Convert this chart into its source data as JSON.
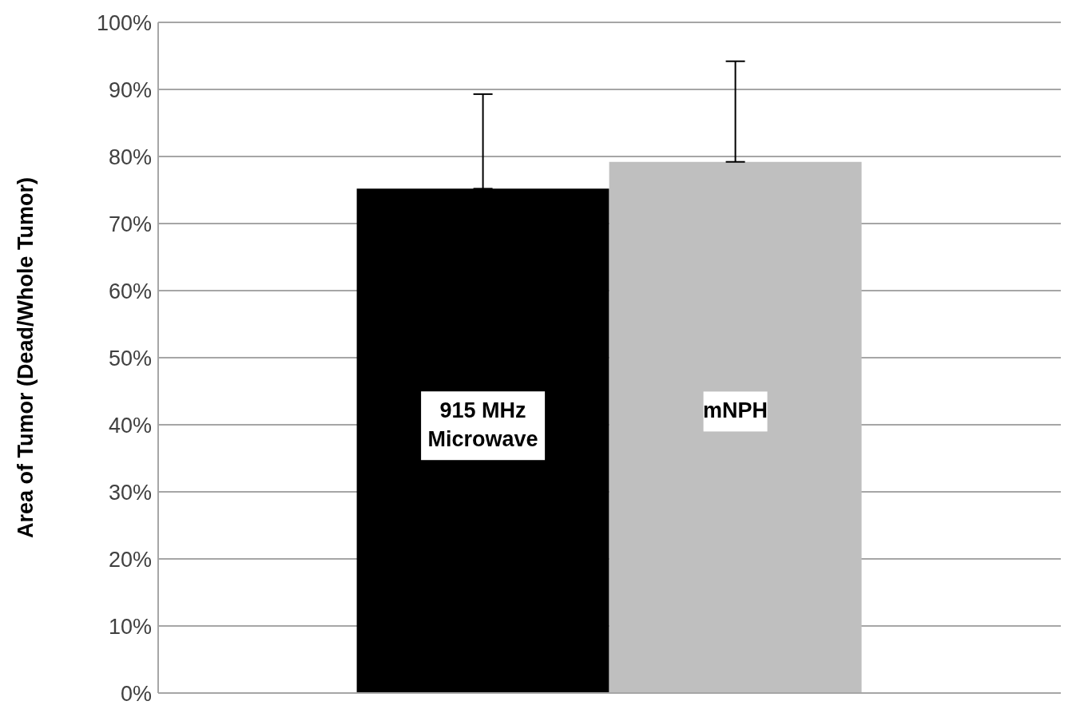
{
  "chart_data": {
    "type": "bar",
    "ylabel": "Area of Tumor (Dead/Whole Tumor)",
    "categories": [
      null
    ],
    "series": [
      {
        "name": "915 MHz Microwave",
        "color": "#000000",
        "values": [
          75.2
        ],
        "errors": [
          [
            75.2,
            89.3
          ]
        ]
      },
      {
        "name": "mNPH",
        "color": "#bfbfbf",
        "values": [
          79.2
        ],
        "errors": [
          [
            79.2,
            94.2
          ]
        ]
      }
    ],
    "ylim": [
      0,
      100
    ],
    "yticks": [
      {
        "value": 0,
        "label": "0%"
      },
      {
        "value": 10,
        "label": "10%"
      },
      {
        "value": 20,
        "label": "20%"
      },
      {
        "value": 30,
        "label": "30%"
      },
      {
        "value": 40,
        "label": "40%"
      },
      {
        "value": 50,
        "label": "50%"
      },
      {
        "value": 60,
        "label": "60%"
      },
      {
        "value": 70,
        "label": "70%"
      },
      {
        "value": 80,
        "label": "80%"
      },
      {
        "value": 90,
        "label": "90%"
      },
      {
        "value": 100,
        "label": "100%"
      }
    ],
    "grid": "y",
    "legend": false
  }
}
